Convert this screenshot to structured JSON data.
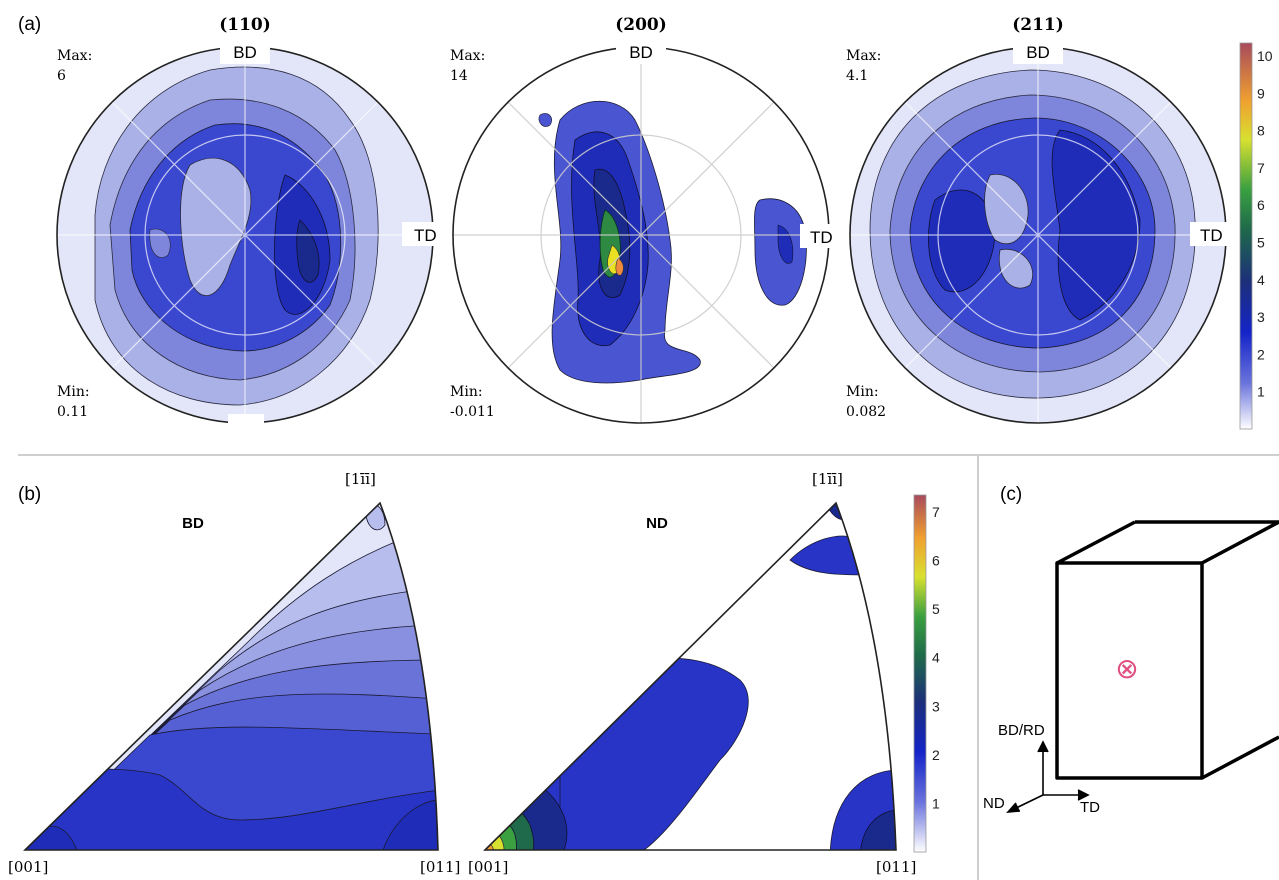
{
  "panel_a": {
    "label": "(a)",
    "pole_figures": [
      {
        "title": "(110)",
        "max_label": "Max:",
        "max_value": "6",
        "min_label": "Min:",
        "min_value": "0.11",
        "bd": "BD",
        "td": "TD"
      },
      {
        "title": "(200)",
        "max_label": "Max:",
        "max_value": "14",
        "min_label": "Min:",
        "min_value": "-0.011",
        "bd": "BD",
        "td": "TD"
      },
      {
        "title": "(211)",
        "max_label": "Max:",
        "max_value": "4.1",
        "min_label": "Min:",
        "min_value": "0.082",
        "bd": "BD",
        "td": "TD"
      }
    ],
    "colorbar": {
      "ticks": [
        "1",
        "2",
        "3",
        "4",
        "5",
        "6",
        "7",
        "8",
        "9",
        "10"
      ]
    }
  },
  "panel_b": {
    "label": "(b)",
    "ipfs": [
      {
        "title": "BD",
        "corner_001": "[001]",
        "corner_011": "[011]",
        "corner_111": "[1īī]"
      },
      {
        "title": "ND",
        "corner_001": "[001]",
        "corner_011": "[011]",
        "corner_111": "[1īī]"
      }
    ],
    "colorbar": {
      "ticks": [
        "1",
        "2",
        "3",
        "4",
        "5",
        "6",
        "7"
      ]
    }
  },
  "panel_c": {
    "label": "(c)",
    "axes": {
      "vertical": "BD/RD",
      "left": "ND",
      "right": "TD"
    },
    "marker": "⊗"
  },
  "colors": {
    "lightest": "#dfe3f7",
    "light": "#b3b9ea",
    "mid": "#7f88dd",
    "blue": "#3a47cf",
    "deep": "#1f2cb8",
    "navy": "#1a2a8c",
    "green": "#2e8a43",
    "yellow": "#e8e020",
    "orange": "#f08a3c",
    "pink": "#c75a7a",
    "marker": "#e05080"
  }
}
